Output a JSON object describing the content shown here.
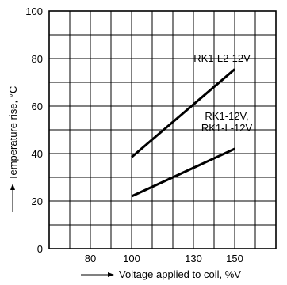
{
  "chart_data": {
    "type": "line",
    "xlabel": "Voltage applied to coil, %V",
    "ylabel": "Temperature rise, °C",
    "xlim": [
      60,
      170
    ],
    "ylim": [
      0,
      100
    ],
    "x_ticks": [
      80,
      100,
      130,
      150
    ],
    "y_ticks": [
      0,
      20,
      40,
      60,
      80,
      100
    ],
    "x_grid_step": 10,
    "y_grid_step": 10,
    "grid": true,
    "series": [
      {
        "name": "RK1-L2-12V",
        "x": [
          100,
          150
        ],
        "y": [
          38.5,
          75.5
        ]
      },
      {
        "name": "RK1-12V,\nRK1-L-12V",
        "x": [
          100,
          150
        ],
        "y": [
          22,
          42
        ]
      }
    ],
    "series_labels": [
      {
        "lines": [
          "RK1-L2-12V"
        ]
      },
      {
        "lines": [
          "RK1-12V,",
          "RK1-L-12V"
        ]
      }
    ]
  }
}
